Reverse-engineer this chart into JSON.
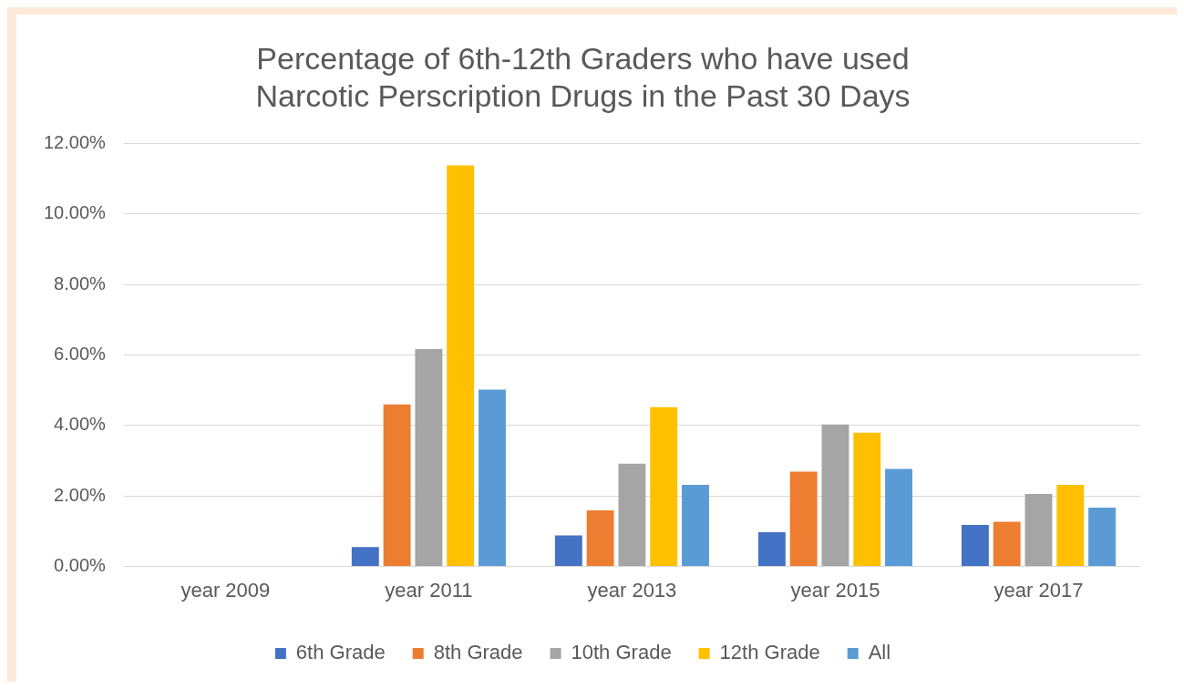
{
  "chart_data": {
    "type": "bar",
    "title": "Percentage of 6th-12th Graders who have used Narcotic Perscription Drugs in the Past 30 Days",
    "categories": [
      "year 2009",
      "year 2011",
      "year 2013",
      "year 2015",
      "year 2017"
    ],
    "series": [
      {
        "name": "6th Grade",
        "color": "#4472c4",
        "values": [
          null,
          0.55,
          0.88,
          0.97,
          1.18
        ]
      },
      {
        "name": "8th Grade",
        "color": "#ed7d31",
        "values": [
          null,
          4.6,
          1.59,
          2.69,
          1.27
        ]
      },
      {
        "name": "10th Grade",
        "color": "#a5a5a5",
        "values": [
          null,
          6.17,
          2.92,
          4.03,
          2.06
        ]
      },
      {
        "name": "12th Grade",
        "color": "#ffc000",
        "values": [
          null,
          11.38,
          4.52,
          3.8,
          2.32
        ]
      },
      {
        "name": "All",
        "color": "#5b9bd5",
        "values": [
          null,
          5.02,
          2.32,
          2.77,
          1.67
        ]
      }
    ],
    "ylim": [
      0,
      12
    ],
    "yticks": [
      {
        "value": 0,
        "label": "0.00%"
      },
      {
        "value": 2,
        "label": "2.00%"
      },
      {
        "value": 4,
        "label": "4.00%"
      },
      {
        "value": 6,
        "label": "6.00%"
      },
      {
        "value": 8,
        "label": "8.00%"
      },
      {
        "value": 10,
        "label": "10.00%"
      },
      {
        "value": 12,
        "label": "12.00%"
      }
    ],
    "grid": "y",
    "legend": "bottom"
  }
}
